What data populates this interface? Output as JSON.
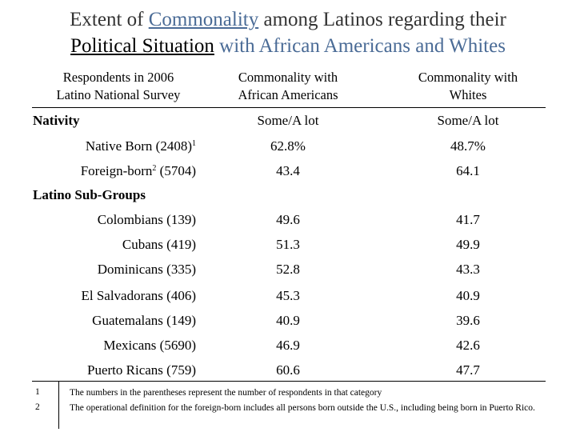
{
  "title": {
    "part1": "Extent of ",
    "part2": "Commonality",
    "part3": " among Latinos regarding their",
    "part4": "Political Situation",
    "part5": " with African Americans and Whites"
  },
  "header": {
    "col0": [
      "Respondents in 2006",
      "Latino National Survey"
    ],
    "col1": [
      "Commonality with",
      "African Americans"
    ],
    "col2": [
      "Commonality with",
      "Whites"
    ]
  },
  "nativity": {
    "section": "Nativity",
    "sub1": "Some/A lot",
    "sub2": "Some/A lot",
    "rows": [
      {
        "label": "Native Born (2408)",
        "sup": "1",
        "v1": "62.8%",
        "v2": "48.7%"
      },
      {
        "label": "Foreign-born",
        "sup": "2",
        "label_tail": " (5704)",
        "v1": "43.4",
        "v2": "64.1"
      }
    ]
  },
  "subgroups": {
    "section": "Latino Sub-Groups",
    "rows": [
      {
        "label": "Colombians (139)",
        "v1": "49.6",
        "v2": "41.7"
      },
      {
        "label": "Cubans (419)",
        "v1": "51.3",
        "v2": "49.9"
      },
      {
        "label": "Dominicans (335)",
        "v1": "52.8",
        "v2": "43.3"
      },
      {
        "label": "El Salvadorans (406)",
        "v1": "45.3",
        "v2": "40.9"
      },
      {
        "label": "Guatemalans (149)",
        "v1": "40.9",
        "v2": "39.6"
      },
      {
        "label": "Mexicans (5690)",
        "v1": "46.9",
        "v2": "42.6"
      },
      {
        "label": "Puerto Ricans (759)",
        "v1": "60.6",
        "v2": "47.7"
      }
    ]
  },
  "footnotes": [
    {
      "num": "1",
      "text": "The numbers in the parentheses represent the number of respondents in that category"
    },
    {
      "num": "2",
      "text": "The operational definition for the foreign-born includes all persons born outside the U.S., including being born in Puerto Rico."
    }
  ],
  "colors": {
    "title_text": "#333333",
    "accent_blue": "#4a6b96",
    "rule": "#000000"
  }
}
